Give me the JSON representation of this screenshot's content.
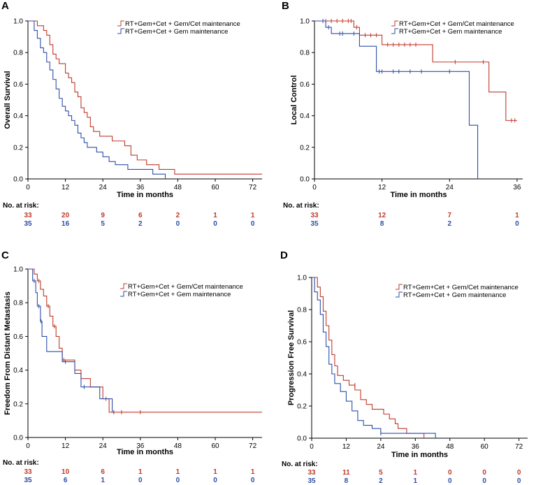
{
  "colors": {
    "red": "#c0392b",
    "blue": "#2e4ea8",
    "axis": "#000000"
  },
  "risk_header": "No. at risk:",
  "chart_data": [
    {
      "type": "line",
      "subtype": "kaplan-meier",
      "panel": "A",
      "ylabel": "Overall Survival",
      "xlabel": "Time in months",
      "xlim": [
        0,
        75
      ],
      "ylim": [
        0,
        1.0
      ],
      "xticks": [
        0,
        12,
        24,
        36,
        48,
        60,
        72
      ],
      "yticks": [
        0.0,
        0.2,
        0.4,
        0.6,
        0.8,
        1.0
      ],
      "legend": [
        "RT+Gem+Cet + Gem/Cet maintenance",
        "RT+Gem+Cet + Gem maintenance"
      ],
      "series": [
        {
          "name": "RT+Gem+Cet + Gem/Cet maintenance",
          "color": "red",
          "steps": [
            [
              0,
              1.0
            ],
            [
              3,
              0.97
            ],
            [
              5,
              0.94
            ],
            [
              6,
              0.91
            ],
            [
              7,
              0.85
            ],
            [
              8,
              0.79
            ],
            [
              9,
              0.76
            ],
            [
              10,
              0.73
            ],
            [
              12,
              0.67
            ],
            [
              13,
              0.64
            ],
            [
              14,
              0.61
            ],
            [
              15,
              0.55
            ],
            [
              16,
              0.52
            ],
            [
              17,
              0.45
            ],
            [
              18,
              0.42
            ],
            [
              19,
              0.39
            ],
            [
              20,
              0.33
            ],
            [
              21,
              0.3
            ],
            [
              23,
              0.27
            ],
            [
              27,
              0.24
            ],
            [
              31,
              0.21
            ],
            [
              33,
              0.15
            ],
            [
              35,
              0.12
            ],
            [
              38,
              0.09
            ],
            [
              42,
              0.06
            ],
            [
              47,
              0.03
            ],
            [
              75,
              0.03
            ]
          ],
          "censors": []
        },
        {
          "name": "RT+Gem+Cet + Gem maintenance",
          "color": "blue",
          "steps": [
            [
              0,
              1.0
            ],
            [
              2,
              0.94
            ],
            [
              3,
              0.89
            ],
            [
              4,
              0.83
            ],
            [
              5,
              0.8
            ],
            [
              6,
              0.74
            ],
            [
              7,
              0.69
            ],
            [
              8,
              0.63
            ],
            [
              9,
              0.57
            ],
            [
              10,
              0.51
            ],
            [
              11,
              0.46
            ],
            [
              12,
              0.43
            ],
            [
              13,
              0.4
            ],
            [
              14,
              0.37
            ],
            [
              15,
              0.34
            ],
            [
              16,
              0.29
            ],
            [
              17,
              0.26
            ],
            [
              18,
              0.23
            ],
            [
              19,
              0.2
            ],
            [
              22,
              0.17
            ],
            [
              24,
              0.14
            ],
            [
              26,
              0.11
            ],
            [
              28,
              0.09
            ],
            [
              32,
              0.06
            ],
            [
              40,
              0.03
            ],
            [
              44,
              0.0
            ]
          ],
          "censors": []
        }
      ],
      "risk": {
        "times": [
          0,
          12,
          24,
          36,
          48,
          60,
          72
        ],
        "rows": [
          {
            "color": "red",
            "values": [
              "33",
              "20",
              "9",
              "6",
              "2",
              "1",
              "1"
            ]
          },
          {
            "color": "blue",
            "values": [
              "35",
              "16",
              "5",
              "2",
              "0",
              "0",
              "0"
            ]
          }
        ]
      }
    },
    {
      "type": "line",
      "subtype": "kaplan-meier",
      "panel": "B",
      "ylabel": "Local Control",
      "xlabel": "Time in months",
      "xlim": [
        0,
        37
      ],
      "ylim": [
        0,
        1.0
      ],
      "xticks": [
        0,
        12,
        24,
        36
      ],
      "yticks": [
        0.0,
        0.2,
        0.4,
        0.6,
        0.8,
        1.0
      ],
      "legend": [
        "RT+Gem+Cet + Gem/Cet maintenance",
        "RT+Gem+Cet + Gem maintenance"
      ],
      "series": [
        {
          "name": "RT+Gem+Cet + Gem/Cet maintenance",
          "color": "red",
          "steps": [
            [
              0,
              1.0
            ],
            [
              7,
              0.96
            ],
            [
              8,
              0.91
            ],
            [
              12,
              0.85
            ],
            [
              21,
              0.74
            ],
            [
              31,
              0.55
            ],
            [
              34,
              0.37
            ],
            [
              36,
              0.37
            ]
          ],
          "censors": [
            [
              2,
              1.0
            ],
            [
              3,
              1.0
            ],
            [
              4,
              1.0
            ],
            [
              5,
              1.0
            ],
            [
              6,
              1.0
            ],
            [
              6.5,
              1.0
            ],
            [
              7.5,
              0.96
            ],
            [
              9,
              0.91
            ],
            [
              10,
              0.91
            ],
            [
              11,
              0.91
            ],
            [
              13,
              0.85
            ],
            [
              14,
              0.85
            ],
            [
              15,
              0.85
            ],
            [
              16,
              0.85
            ],
            [
              17,
              0.85
            ],
            [
              18,
              0.85
            ],
            [
              25,
              0.74
            ],
            [
              30,
              0.74
            ],
            [
              35,
              0.37
            ],
            [
              35.6,
              0.37
            ]
          ]
        },
        {
          "name": "RT+Gem+Cet + Gem maintenance",
          "color": "blue",
          "steps": [
            [
              0,
              1.0
            ],
            [
              2,
              0.96
            ],
            [
              3,
              0.92
            ],
            [
              8,
              0.84
            ],
            [
              11,
              0.68
            ],
            [
              27.5,
              0.34
            ],
            [
              29,
              0.0
            ]
          ],
          "censors": [
            [
              1.5,
              1.0
            ],
            [
              2.5,
              0.96
            ],
            [
              4.5,
              0.92
            ],
            [
              5,
              0.92
            ],
            [
              7,
              0.92
            ],
            [
              11.5,
              0.68
            ],
            [
              12,
              0.68
            ],
            [
              14,
              0.68
            ],
            [
              15,
              0.68
            ],
            [
              17,
              0.68
            ],
            [
              19,
              0.68
            ],
            [
              24,
              0.68
            ]
          ]
        }
      ],
      "risk": {
        "times": [
          0,
          12,
          24,
          36
        ],
        "rows": [
          {
            "color": "red",
            "values": [
              "33",
              "12",
              "7",
              "1"
            ]
          },
          {
            "color": "blue",
            "values": [
              "35",
              "8",
              "2",
              "0"
            ]
          }
        ]
      }
    },
    {
      "type": "line",
      "subtype": "kaplan-meier",
      "panel": "C",
      "ylabel": "Freedom From Distant Metastasis",
      "xlabel": "Time in months",
      "xlim": [
        0,
        75
      ],
      "ylim": [
        0,
        1.0
      ],
      "xticks": [
        0,
        12,
        24,
        36,
        48,
        60,
        72
      ],
      "yticks": [
        0.0,
        0.2,
        0.4,
        0.6,
        0.8,
        1.0
      ],
      "legend": [
        "RT+Gem+Cet + Gem/Cet maintenance",
        "RT+Gem+Cet + Gem maintenance"
      ],
      "series": [
        {
          "name": "RT+Gem+Cet + Gem/Cet maintenance",
          "color": "red",
          "steps": [
            [
              0,
              1.0
            ],
            [
              2,
              0.97
            ],
            [
              3,
              0.93
            ],
            [
              4,
              0.88
            ],
            [
              5,
              0.84
            ],
            [
              6,
              0.78
            ],
            [
              7,
              0.72
            ],
            [
              8,
              0.66
            ],
            [
              9,
              0.6
            ],
            [
              10,
              0.53
            ],
            [
              11,
              0.46
            ],
            [
              15,
              0.4
            ],
            [
              17,
              0.35
            ],
            [
              20,
              0.3
            ],
            [
              24,
              0.23
            ],
            [
              26,
              0.15
            ],
            [
              75,
              0.15
            ]
          ],
          "censors": [
            [
              3.5,
              0.93
            ],
            [
              6.5,
              0.78
            ],
            [
              8.5,
              0.66
            ],
            [
              11.5,
              0.46
            ],
            [
              25,
              0.23
            ],
            [
              30,
              0.15
            ],
            [
              36,
              0.15
            ]
          ]
        },
        {
          "name": "RT+Gem+Cet + Gem maintenance",
          "color": "blue",
          "steps": [
            [
              0,
              1.0
            ],
            [
              1.5,
              0.93
            ],
            [
              2.5,
              0.86
            ],
            [
              3,
              0.78
            ],
            [
              4,
              0.69
            ],
            [
              4.5,
              0.6
            ],
            [
              6,
              0.51
            ],
            [
              11,
              0.45
            ],
            [
              15,
              0.38
            ],
            [
              17,
              0.3
            ],
            [
              23,
              0.23
            ],
            [
              27,
              0.15
            ]
          ],
          "censors": [
            [
              2,
              0.93
            ],
            [
              3.5,
              0.78
            ],
            [
              4.2,
              0.69
            ],
            [
              12,
              0.45
            ],
            [
              18,
              0.3
            ],
            [
              27.5,
              0.15
            ]
          ]
        }
      ],
      "risk": {
        "times": [
          0,
          12,
          24,
          36,
          48,
          60,
          72
        ],
        "rows": [
          {
            "color": "red",
            "values": [
              "33",
              "10",
              "6",
              "1",
              "1",
              "1",
              "1"
            ]
          },
          {
            "color": "blue",
            "values": [
              "35",
              "6",
              "1",
              "0",
              "0",
              "0",
              "0"
            ]
          }
        ]
      }
    },
    {
      "type": "line",
      "subtype": "kaplan-meier",
      "panel": "D",
      "ylabel": "Progression Free Survival",
      "xlabel": "Time in months",
      "xlim": [
        0,
        75
      ],
      "ylim": [
        0,
        1.0
      ],
      "xticks": [
        0,
        12,
        24,
        36,
        48,
        60,
        72
      ],
      "yticks": [
        0.0,
        0.2,
        0.4,
        0.6,
        0.8,
        1.0
      ],
      "legend": [
        "RT+Gem+Cet + Gem/Cet maintenance",
        "RT+Gem+Cet + Gem maintenance"
      ],
      "series": [
        {
          "name": "RT+Gem+Cet + Gem/Cet maintenance",
          "color": "red",
          "steps": [
            [
              0,
              1.0
            ],
            [
              2,
              0.94
            ],
            [
              3,
              0.88
            ],
            [
              4,
              0.79
            ],
            [
              5,
              0.7
            ],
            [
              6,
              0.61
            ],
            [
              7,
              0.52
            ],
            [
              8,
              0.45
            ],
            [
              9,
              0.39
            ],
            [
              11,
              0.36
            ],
            [
              13,
              0.33
            ],
            [
              15,
              0.3
            ],
            [
              17,
              0.24
            ],
            [
              19,
              0.21
            ],
            [
              21,
              0.18
            ],
            [
              25,
              0.15
            ],
            [
              27,
              0.12
            ],
            [
              29,
              0.09
            ],
            [
              30,
              0.06
            ],
            [
              33,
              0.03
            ],
            [
              39,
              0.0
            ]
          ],
          "censors": [
            [
              15,
              0.33
            ]
          ]
        },
        {
          "name": "RT+Gem+Cet + Gem maintenance",
          "color": "blue",
          "steps": [
            [
              0,
              1.0
            ],
            [
              1,
              0.91
            ],
            [
              2,
              0.86
            ],
            [
              3,
              0.77
            ],
            [
              4,
              0.66
            ],
            [
              5,
              0.57
            ],
            [
              6,
              0.46
            ],
            [
              7,
              0.4
            ],
            [
              8,
              0.34
            ],
            [
              10,
              0.29
            ],
            [
              12,
              0.23
            ],
            [
              14,
              0.17
            ],
            [
              16,
              0.11
            ],
            [
              18,
              0.08
            ],
            [
              21,
              0.06
            ],
            [
              24,
              0.03
            ],
            [
              43,
              0.0
            ]
          ],
          "censors": [
            [
              24,
              0.03
            ]
          ]
        }
      ],
      "risk": {
        "times": [
          0,
          12,
          24,
          36,
          48,
          60,
          72
        ],
        "rows": [
          {
            "color": "red",
            "values": [
              "33",
              "11",
              "5",
              "1",
              "0",
              "0",
              "0"
            ]
          },
          {
            "color": "blue",
            "values": [
              "35",
              "8",
              "2",
              "1",
              "0",
              "0",
              "0"
            ]
          }
        ]
      }
    }
  ]
}
